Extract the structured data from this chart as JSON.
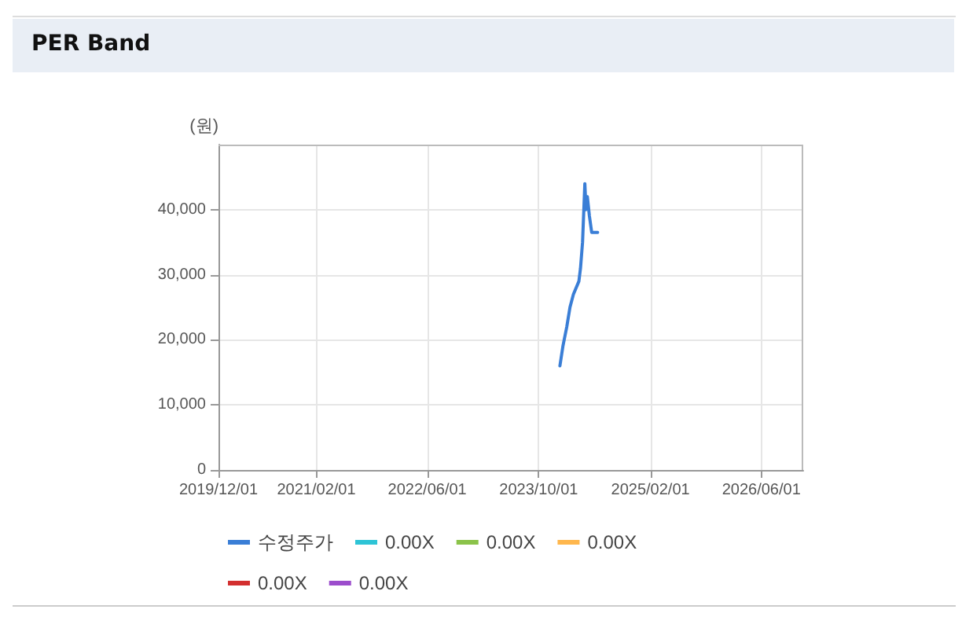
{
  "chart_data": {
    "type": "line",
    "title": "PER Band",
    "ylabel": "(원)",
    "x": [
      "2024-01-02",
      "2024-01-15",
      "2024-02-01",
      "2024-02-15",
      "2024-03-01",
      "2024-03-25",
      "2024-04-01",
      "2024-04-10",
      "2024-04-20",
      "2024-04-25",
      "2024-05-01",
      "2024-05-10",
      "2024-05-20",
      "2024-06-15"
    ],
    "series": [
      {
        "name": "수정주가",
        "color": "#3a7ed6",
        "values": [
          16000,
          19000,
          22000,
          25000,
          27000,
          29000,
          31000,
          35000,
          44000,
          40000,
          42000,
          39000,
          36500,
          36500
        ]
      },
      {
        "name": "0.00X",
        "color": "#2ec4d6",
        "values": [
          null,
          null,
          null,
          null,
          null,
          null,
          null,
          null,
          null,
          null,
          null,
          null,
          null,
          null
        ]
      },
      {
        "name": "0.00X",
        "color": "#8bc34a",
        "values": [
          null,
          null,
          null,
          null,
          null,
          null,
          null,
          null,
          null,
          null,
          null,
          null,
          null,
          null
        ]
      },
      {
        "name": "0.00X",
        "color": "#ffb74d",
        "values": [
          null,
          null,
          null,
          null,
          null,
          null,
          null,
          null,
          null,
          null,
          null,
          null,
          null,
          null
        ]
      },
      {
        "name": "0.00X",
        "color": "#d32f2f",
        "values": [
          null,
          null,
          null,
          null,
          null,
          null,
          null,
          null,
          null,
          null,
          null,
          null,
          null,
          null
        ]
      },
      {
        "name": "0.00X",
        "color": "#9c4dcc",
        "values": [
          null,
          null,
          null,
          null,
          null,
          null,
          null,
          null,
          null,
          null,
          null,
          null,
          null,
          null
        ]
      }
    ],
    "xlim": [
      "2019-12-01",
      "2026-12-01"
    ],
    "xticks": [
      {
        "value": "2019-12-01",
        "label": "2019/12/01"
      },
      {
        "value": "2021-02-01",
        "label": "2021/02/01"
      },
      {
        "value": "2022-06-01",
        "label": "2022/06/01"
      },
      {
        "value": "2023-10-01",
        "label": "2023/10/01"
      },
      {
        "value": "2025-02-01",
        "label": "2025/02/01"
      },
      {
        "value": "2026-06-01",
        "label": "2026/06/01"
      }
    ],
    "ylim": [
      0,
      50000
    ],
    "yticks": [
      0,
      {
        "value": 10000,
        "label": "10,000"
      },
      {
        "value": 20000,
        "label": "20,000"
      },
      {
        "value": 30000,
        "label": "30,000"
      },
      {
        "value": 40000,
        "label": "40,000"
      }
    ],
    "grid": true,
    "legend": "bottom left",
    "marker": "none",
    "line_style": "solid"
  }
}
